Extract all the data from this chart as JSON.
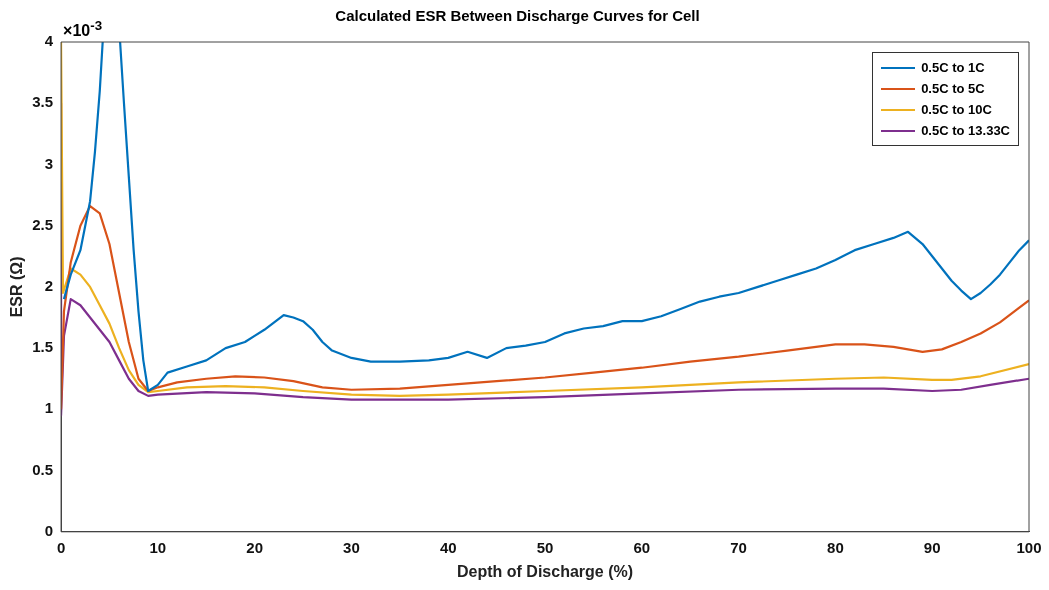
{
  "chart_data": {
    "type": "line",
    "title": "Calculated ESR Between Discharge Curves for Cell",
    "xlabel": "Depth of Discharge (%)",
    "ylabel": "ESR (Ω)",
    "annotations": [
      "×10$^{-3}$"
    ],
    "xlim": [
      0,
      100
    ],
    "xticks": [
      0,
      10,
      20,
      30,
      40,
      50,
      60,
      70,
      80,
      90,
      100
    ],
    "ylim": [
      0,
      4
    ],
    "yticks": [
      0,
      0.5,
      1,
      1.5,
      2,
      2.5,
      3,
      3.5,
      4
    ],
    "grid": false,
    "legend": "top right",
    "marker": "none",
    "line_style": "solid",
    "series": [
      {
        "name": "0.5C to 1C",
        "color": "#0072bd",
        "x": [
          0.3,
          1,
          2,
          3,
          3.5,
          4,
          4.3,
          5.2,
          6.1,
          6.5,
          7,
          7.5,
          8,
          8.5,
          9,
          10,
          11,
          13,
          15,
          17,
          19,
          21,
          23,
          24,
          25,
          26,
          27,
          28,
          30,
          32,
          35,
          38,
          40,
          42,
          44,
          46,
          48,
          50,
          52,
          54,
          56,
          58,
          60,
          62,
          64,
          66,
          68,
          70,
          72,
          74,
          76,
          78,
          80,
          82,
          84,
          86,
          87.5,
          89,
          90,
          91,
          92,
          93,
          94,
          95,
          96,
          97,
          98,
          99,
          100
        ],
        "values": [
          1.9,
          2.1,
          2.3,
          2.7,
          3.1,
          3.6,
          4,
          null,
          4,
          3.5,
          2.9,
          2.3,
          1.8,
          1.4,
          1.15,
          1.2,
          1.3,
          1.35,
          1.4,
          1.5,
          1.55,
          1.65,
          1.77,
          1.75,
          1.72,
          1.65,
          1.55,
          1.48,
          1.42,
          1.39,
          1.39,
          1.4,
          1.42,
          1.47,
          1.42,
          1.5,
          1.52,
          1.55,
          1.62,
          1.66,
          1.68,
          1.72,
          1.72,
          1.76,
          1.82,
          1.88,
          1.92,
          1.95,
          2,
          2.05,
          2.1,
          2.15,
          2.22,
          2.3,
          2.35,
          2.4,
          2.45,
          2.35,
          2.25,
          2.15,
          2.05,
          1.97,
          1.9,
          1.95,
          2.02,
          2.1,
          2.2,
          2.3,
          2.38
        ]
      },
      {
        "name": "0.5C to 5C",
        "color": "#d95319",
        "x": [
          0,
          0.3,
          1,
          2,
          3,
          4,
          5,
          6,
          7,
          8,
          9,
          10,
          12,
          15,
          18,
          21,
          24,
          27,
          30,
          35,
          40,
          45,
          50,
          55,
          60,
          65,
          70,
          75,
          80,
          83,
          86,
          89,
          91,
          93,
          95,
          97,
          100
        ],
        "values": [
          1,
          1.8,
          2.2,
          2.5,
          2.66,
          2.6,
          2.35,
          1.95,
          1.55,
          1.25,
          1.15,
          1.18,
          1.22,
          1.25,
          1.27,
          1.26,
          1.23,
          1.18,
          1.16,
          1.17,
          1.2,
          1.23,
          1.26,
          1.3,
          1.34,
          1.39,
          1.43,
          1.48,
          1.53,
          1.53,
          1.51,
          1.47,
          1.49,
          1.55,
          1.62,
          1.71,
          1.89
        ]
      },
      {
        "name": "0.5C to 10C",
        "color": "#edb120",
        "x": [
          0,
          0.2,
          1,
          2,
          3,
          4,
          5,
          6,
          7,
          8,
          9,
          10,
          13,
          17,
          21,
          25,
          30,
          35,
          40,
          50,
          60,
          70,
          80,
          85,
          90,
          92,
          95,
          100
        ],
        "values": [
          4,
          1.95,
          2.15,
          2.1,
          2,
          1.85,
          1.7,
          1.5,
          1.32,
          1.2,
          1.14,
          1.15,
          1.18,
          1.19,
          1.18,
          1.15,
          1.12,
          1.11,
          1.12,
          1.15,
          1.18,
          1.22,
          1.25,
          1.26,
          1.24,
          1.24,
          1.27,
          1.37
        ]
      },
      {
        "name": "0.5C to 13.33C",
        "color": "#7e2f8e",
        "x": [
          0,
          0,
          0.3,
          1,
          2,
          3,
          4,
          5,
          6,
          7,
          8,
          9,
          10,
          15,
          20,
          25,
          30,
          35,
          40,
          50,
          60,
          70,
          80,
          85,
          90,
          93,
          96,
          100
        ],
        "values": [
          3.5,
          0.95,
          1.6,
          1.9,
          1.85,
          1.75,
          1.65,
          1.55,
          1.4,
          1.25,
          1.15,
          1.11,
          1.12,
          1.14,
          1.13,
          1.1,
          1.08,
          1.08,
          1.08,
          1.1,
          1.13,
          1.16,
          1.17,
          1.17,
          1.15,
          1.16,
          1.2,
          1.25
        ]
      }
    ]
  }
}
